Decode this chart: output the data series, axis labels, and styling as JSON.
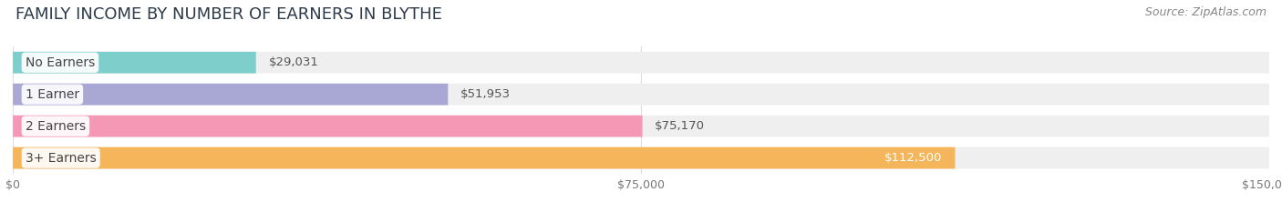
{
  "title": "FAMILY INCOME BY NUMBER OF EARNERS IN BLYTHE",
  "source": "Source: ZipAtlas.com",
  "categories": [
    "No Earners",
    "1 Earner",
    "2 Earners",
    "3+ Earners"
  ],
  "values": [
    29031,
    51953,
    75170,
    112500
  ],
  "bar_colors": [
    "#7ecfcc",
    "#a9a8d5",
    "#f498b6",
    "#f5b55a"
  ],
  "value_labels": [
    "$29,031",
    "$51,953",
    "$75,170",
    "$112,500"
  ],
  "value_label_inside": [
    false,
    false,
    false,
    true
  ],
  "xmax": 150000,
  "xticks": [
    0,
    75000,
    150000
  ],
  "xtick_labels": [
    "$0",
    "$75,000",
    "$150,000"
  ],
  "bg_color": "#ffffff",
  "bar_bg_color": "#efefef",
  "title_fontsize": 13,
  "source_fontsize": 9,
  "label_fontsize": 10,
  "value_fontsize": 9.5
}
